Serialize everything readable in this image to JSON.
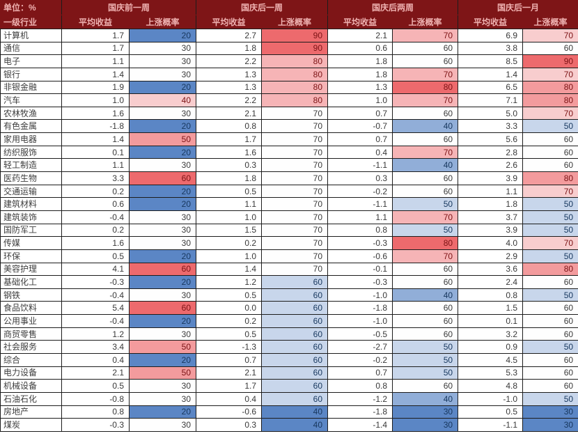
{
  "table": {
    "unit_label": "单位：%",
    "row_header_label": "一级行业",
    "sub_headers": [
      "平均收益",
      "上涨概率"
    ],
    "col_groups": [
      {
        "label": "国庆前一周",
        "scale": {
          "min": 20,
          "mid": 30,
          "max": 60
        }
      },
      {
        "label": "国庆后一周",
        "scale": {
          "min": 40,
          "mid": 70,
          "max": 90
        }
      },
      {
        "label": "国庆后两周",
        "scale": {
          "min": 30,
          "mid": 60,
          "max": 80
        }
      },
      {
        "label": "国庆后一月",
        "scale": {
          "min": 30,
          "mid": 60,
          "max": 90
        }
      }
    ],
    "colors": {
      "header_bg": "#7E1517",
      "header_text": "#EFB2B1",
      "scale_blue": "#5B86C5",
      "scale_white": "#FEFEFE",
      "scale_red": "#ED6A6D",
      "text_blue": "#17375E",
      "text_red": "#7C1315",
      "text_neutral": "#3A3A3A",
      "grid_line": "#1c1c1c"
    },
    "rows": [
      {
        "industry": "计算机",
        "values": [
          "1.7",
          "20",
          "2.7",
          "90",
          "2.1",
          "70",
          "6.9",
          "70"
        ]
      },
      {
        "industry": "通信",
        "values": [
          "1.7",
          "30",
          "1.8",
          "90",
          "0.6",
          "60",
          "3.8",
          "60"
        ]
      },
      {
        "industry": "电子",
        "values": [
          "1.1",
          "30",
          "2.2",
          "80",
          "1.8",
          "60",
          "8.5",
          "90"
        ]
      },
      {
        "industry": "银行",
        "values": [
          "1.4",
          "30",
          "1.3",
          "80",
          "1.8",
          "70",
          "1.4",
          "70"
        ]
      },
      {
        "industry": "非银金融",
        "values": [
          "1.9",
          "20",
          "1.3",
          "80",
          "1.3",
          "80",
          "6.5",
          "80"
        ]
      },
      {
        "industry": "汽车",
        "values": [
          "1.0",
          "40",
          "2.2",
          "80",
          "1.0",
          "70",
          "7.1",
          "80"
        ]
      },
      {
        "industry": "农林牧渔",
        "values": [
          "1.6",
          "30",
          "2.1",
          "70",
          "0.7",
          "60",
          "5.0",
          "70"
        ]
      },
      {
        "industry": "有色金属",
        "values": [
          "-1.8",
          "20",
          "0.8",
          "70",
          "-0.7",
          "40",
          "3.3",
          "50"
        ]
      },
      {
        "industry": "家用电器",
        "values": [
          "1.4",
          "50",
          "1.7",
          "70",
          "0.7",
          "60",
          "5.6",
          "60"
        ]
      },
      {
        "industry": "纺织服饰",
        "values": [
          "0.1",
          "20",
          "1.6",
          "70",
          "0.4",
          "70",
          "2.8",
          "60"
        ]
      },
      {
        "industry": "轻工制造",
        "values": [
          "1.1",
          "30",
          "0.3",
          "70",
          "-1.1",
          "40",
          "2.6",
          "60"
        ]
      },
      {
        "industry": "医药生物",
        "values": [
          "3.3",
          "60",
          "1.8",
          "70",
          "0.3",
          "60",
          "3.9",
          "80"
        ]
      },
      {
        "industry": "交通运输",
        "values": [
          "0.2",
          "20",
          "0.5",
          "70",
          "-0.2",
          "60",
          "1.1",
          "70"
        ]
      },
      {
        "industry": "建筑材料",
        "values": [
          "0.6",
          "20",
          "1.1",
          "70",
          "-1.1",
          "50",
          "1.8",
          "50"
        ]
      },
      {
        "industry": "建筑装饰",
        "values": [
          "-0.4",
          "30",
          "1.0",
          "70",
          "1.1",
          "70",
          "3.7",
          "50"
        ]
      },
      {
        "industry": "国防军工",
        "values": [
          "0.2",
          "30",
          "1.5",
          "70",
          "0.8",
          "50",
          "3.9",
          "50"
        ]
      },
      {
        "industry": "传媒",
        "values": [
          "1.6",
          "30",
          "0.2",
          "70",
          "-0.3",
          "80",
          "4.0",
          "70"
        ]
      },
      {
        "industry": "环保",
        "values": [
          "0.5",
          "20",
          "1.0",
          "70",
          "-0.6",
          "70",
          "2.9",
          "50"
        ]
      },
      {
        "industry": "美容护理",
        "values": [
          "4.1",
          "60",
          "1.4",
          "70",
          "-0.1",
          "60",
          "3.6",
          "80"
        ]
      },
      {
        "industry": "基础化工",
        "values": [
          "-0.3",
          "20",
          "1.2",
          "60",
          "-0.3",
          "60",
          "2.4",
          "60"
        ]
      },
      {
        "industry": "钢铁",
        "values": [
          "-0.4",
          "30",
          "0.5",
          "60",
          "-1.0",
          "40",
          "0.8",
          "50"
        ]
      },
      {
        "industry": "食品饮料",
        "values": [
          "5.4",
          "60",
          "0.0",
          "60",
          "-1.8",
          "60",
          "1.5",
          "60"
        ]
      },
      {
        "industry": "公用事业",
        "values": [
          "-0.4",
          "20",
          "0.2",
          "60",
          "-1.0",
          "60",
          "0.1",
          "60"
        ]
      },
      {
        "industry": "商贸零售",
        "values": [
          "1.2",
          "30",
          "0.5",
          "60",
          "-0.5",
          "60",
          "3.2",
          "60"
        ]
      },
      {
        "industry": "社会服务",
        "values": [
          "3.4",
          "50",
          "-1.3",
          "60",
          "-2.7",
          "50",
          "0.9",
          "50"
        ]
      },
      {
        "industry": "综合",
        "values": [
          "0.4",
          "20",
          "0.7",
          "60",
          "-0.2",
          "50",
          "4.5",
          "60"
        ]
      },
      {
        "industry": "电力设备",
        "values": [
          "2.1",
          "50",
          "2.1",
          "60",
          "0.7",
          "50",
          "5.3",
          "60"
        ]
      },
      {
        "industry": "机械设备",
        "values": [
          "0.5",
          "30",
          "1.7",
          "60",
          "0.8",
          "60",
          "4.8",
          "60"
        ]
      },
      {
        "industry": "石油石化",
        "values": [
          "-0.8",
          "30",
          "0.4",
          "60",
          "-1.2",
          "40",
          "-1.0",
          "50"
        ]
      },
      {
        "industry": "房地产",
        "values": [
          "0.8",
          "20",
          "-0.6",
          "40",
          "-1.8",
          "30",
          "0.5",
          "30"
        ]
      },
      {
        "industry": "煤炭",
        "values": [
          "-0.3",
          "30",
          "0.3",
          "40",
          "-1.4",
          "30",
          "-1.1",
          "30"
        ]
      }
    ]
  }
}
